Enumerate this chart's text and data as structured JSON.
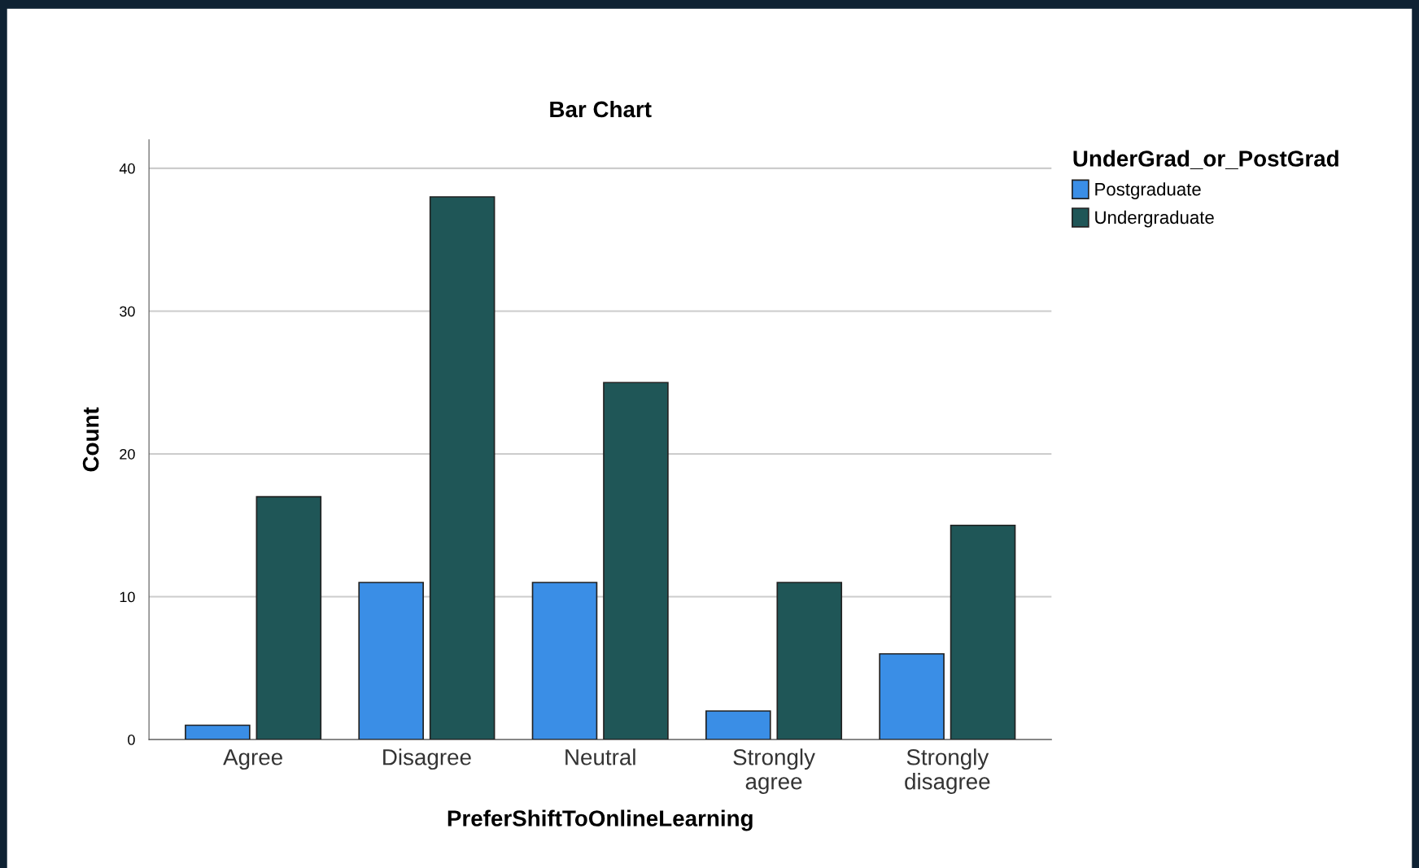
{
  "chart_data": {
    "type": "bar",
    "title": "Bar Chart",
    "xlabel": "PreferShiftToOnlineLearning",
    "ylabel": "Count",
    "legend_title": "UnderGrad_or_PostGrad",
    "categories": [
      "Agree",
      "Disagree",
      "Neutral",
      "Strongly\nagree",
      "Strongly\ndisagree"
    ],
    "series": [
      {
        "name": "Postgraduate",
        "color": "#3a8ee6",
        "values": [
          1,
          11,
          11,
          2,
          6
        ]
      },
      {
        "name": "Undergraduate",
        "color": "#1f5657",
        "values": [
          17,
          38,
          25,
          11,
          15
        ]
      }
    ],
    "ylim": [
      0,
      42
    ],
    "yticks": [
      0,
      10,
      20,
      30,
      40
    ],
    "grid": "y",
    "legend": "top right"
  }
}
